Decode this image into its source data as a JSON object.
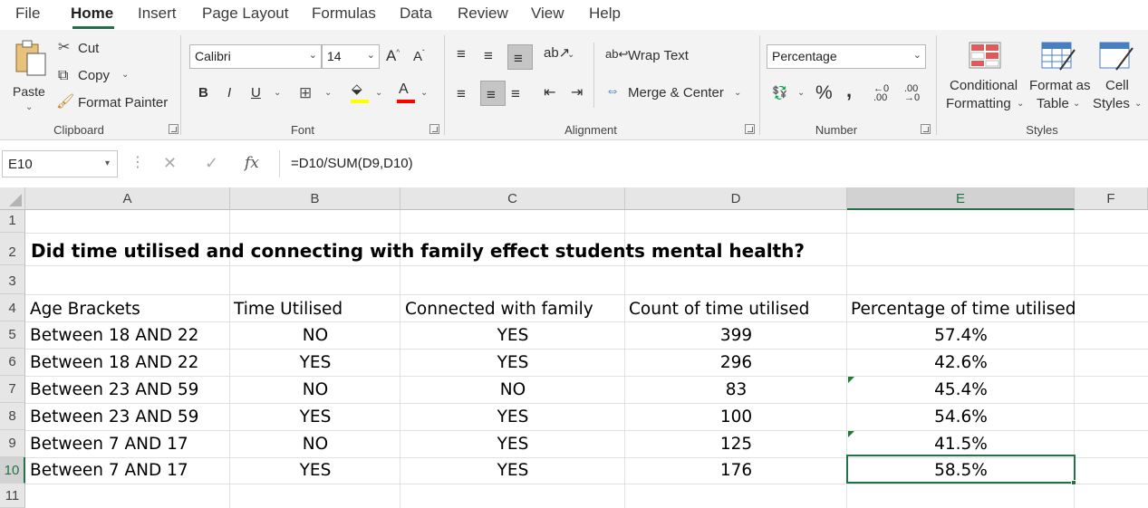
{
  "menu": {
    "tabs": [
      "File",
      "Home",
      "Insert",
      "Page Layout",
      "Formulas",
      "Data",
      "Review",
      "View",
      "Help"
    ],
    "active_tab": "Home"
  },
  "ribbon": {
    "clipboard": {
      "paste": "Paste",
      "cut": "Cut",
      "copy": "Copy",
      "format_painter": "Format Painter",
      "label": "Clipboard"
    },
    "font": {
      "font_name": "Calibri",
      "font_size": "14",
      "bold": "B",
      "italic": "I",
      "underline": "U",
      "label": "Font",
      "highlight_color": "#ffff00",
      "font_color": "#ff0000"
    },
    "alignment": {
      "wrap_text": "Wrap Text",
      "merge_center": "Merge & Center",
      "label": "Alignment"
    },
    "number": {
      "format": "Percentage",
      "percent": "%",
      "comma": ",",
      "label": "Number"
    },
    "styles": {
      "conditional_1": "Conditional",
      "conditional_2": "Formatting",
      "format_as_1": "Format as",
      "format_as_2": "Table",
      "cell_1": "Cell",
      "cell_2": "Styles",
      "label": "Styles"
    }
  },
  "formula_bar": {
    "name_box": "E10",
    "fx": "fx",
    "formula": "=D10/SUM(D9,D10)"
  },
  "sheet": {
    "columns": [
      "A",
      "B",
      "C",
      "D",
      "E",
      "F"
    ],
    "rows": [
      "1",
      "2",
      "3",
      "4",
      "5",
      "6",
      "7",
      "8",
      "9",
      "10",
      "11"
    ],
    "selected_column": "E",
    "selected_row": "10",
    "title": "Did time utilised and connecting with family effect students mental health?",
    "headers": [
      "Age Brackets",
      "Time Utilised",
      "Connected with family",
      "Count of time utilised",
      "Percentage of time utilised"
    ],
    "data": [
      [
        "Between 18 AND 22",
        "NO",
        "YES",
        "399",
        "57.4%"
      ],
      [
        "Between 18 AND 22",
        "YES",
        "YES",
        "296",
        "42.6%"
      ],
      [
        "Between 23 AND 59",
        "NO",
        "NO",
        "83",
        "45.4%"
      ],
      [
        "Between 23 AND 59",
        "YES",
        "YES",
        "100",
        "54.6%"
      ],
      [
        "Between 7 AND 17",
        "NO",
        "YES",
        "125",
        "41.5%"
      ],
      [
        "Between 7 AND 17",
        "YES",
        "YES",
        "176",
        "58.5%"
      ]
    ],
    "accent_color": "#217346"
  }
}
